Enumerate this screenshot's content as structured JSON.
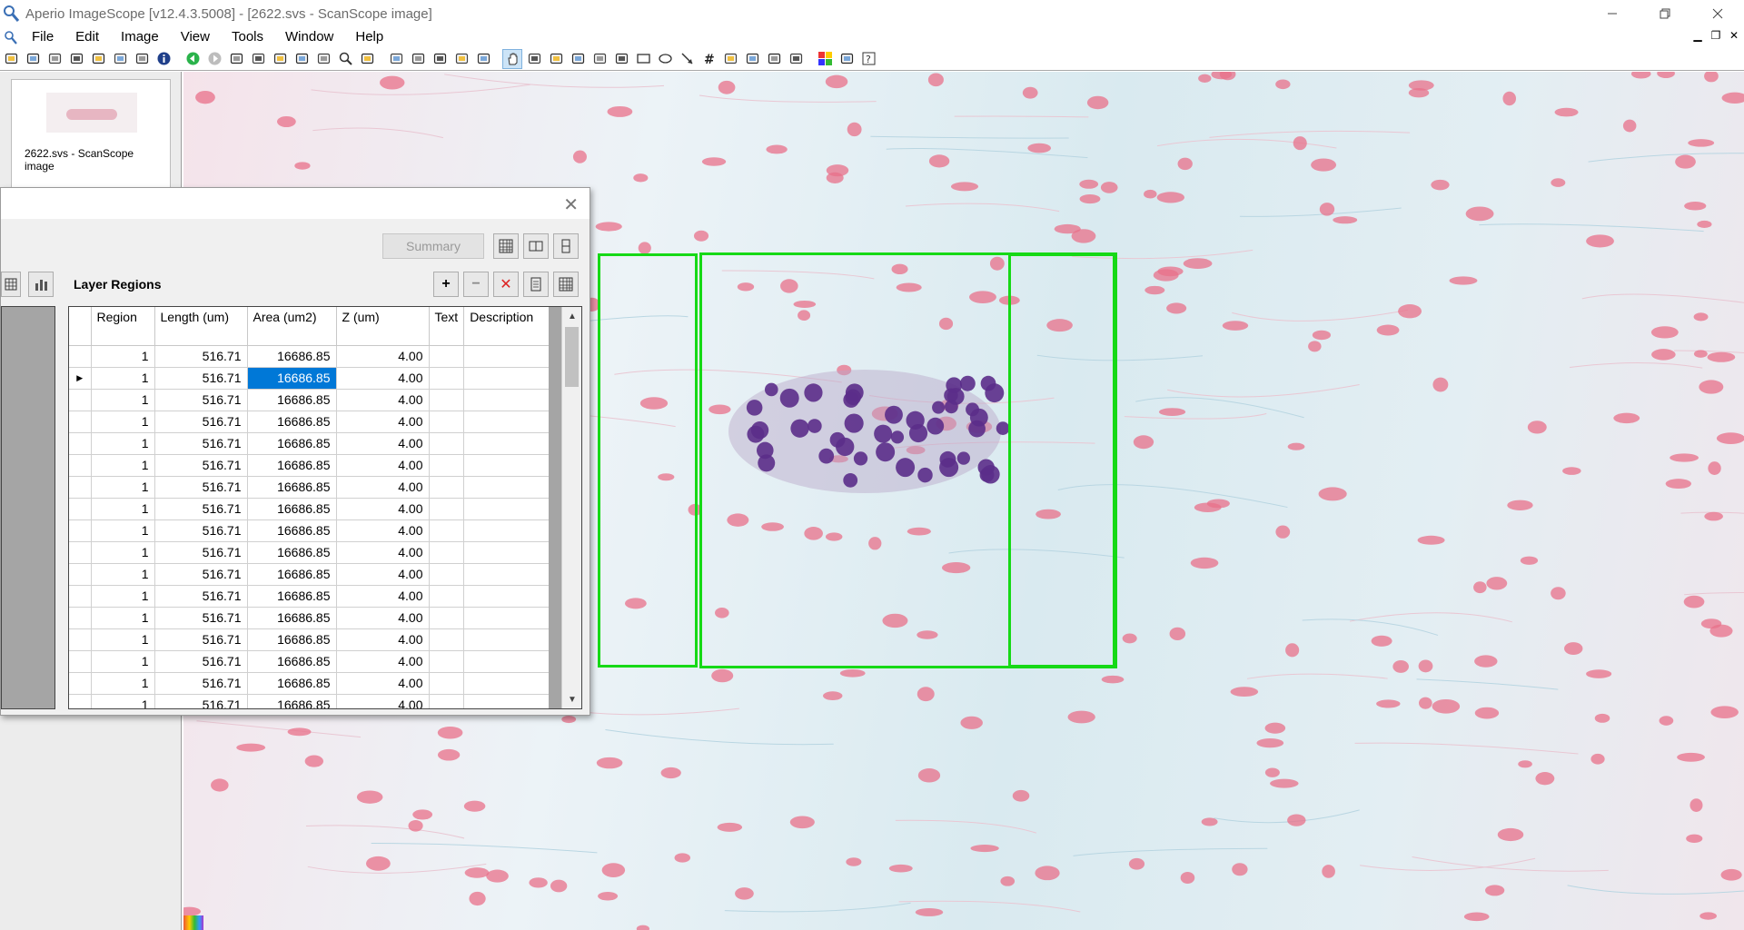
{
  "window": {
    "title": "Aperio ImageScope [v12.4.3.5008] - [2622.svs - ScanScope image]",
    "controls": [
      "minimize",
      "restore",
      "close"
    ]
  },
  "menu": [
    "File",
    "Edit",
    "Image",
    "View",
    "Tools",
    "Window",
    "Help"
  ],
  "toolbar_icons": [
    "open-icon",
    "folder-icon",
    "camera-icon",
    "snapshot-icon",
    "print-icon",
    "extract-icon",
    "link-icon",
    "info-icon",
    "back-icon",
    "forward-icon",
    "layout-icon",
    "layout2-icon",
    "window-icon",
    "page-icon",
    "compare-icon",
    "zoom-icon",
    "fit-icon",
    "annotate-icon",
    "highlight-icon",
    "transfer-icon",
    "undo-icon",
    "redo-icon",
    "pan-icon",
    "select-icon",
    "crop-icon",
    "pen-icon",
    "freehand-icon",
    "ruler-icon",
    "rectangle-icon",
    "ellipse-icon",
    "arrow-icon",
    "grid-icon",
    "counter-icon",
    "cut-icon",
    "copy-icon",
    "paste-icon",
    "color-icon",
    "levels-icon",
    "help-icon"
  ],
  "thumbnail": {
    "label": "2622.svs - ScanScope image"
  },
  "dialog": {
    "summary_label": "Summary",
    "layer_title": "Layer Regions",
    "columns": [
      "Region",
      "Length (um)",
      "Area (um2)",
      "Z (um)",
      "Text",
      "Description"
    ],
    "rows": [
      {
        "region": "1",
        "length": "516.71",
        "area": "16686.85",
        "z": "4.00",
        "text": "",
        "description": ""
      },
      {
        "region": "1",
        "length": "516.71",
        "area": "16686.85",
        "z": "4.00",
        "text": "",
        "description": ""
      },
      {
        "region": "1",
        "length": "516.71",
        "area": "16686.85",
        "z": "4.00",
        "text": "",
        "description": ""
      },
      {
        "region": "1",
        "length": "516.71",
        "area": "16686.85",
        "z": "4.00",
        "text": "",
        "description": ""
      },
      {
        "region": "1",
        "length": "516.71",
        "area": "16686.85",
        "z": "4.00",
        "text": "",
        "description": ""
      },
      {
        "region": "1",
        "length": "516.71",
        "area": "16686.85",
        "z": "4.00",
        "text": "",
        "description": ""
      },
      {
        "region": "1",
        "length": "516.71",
        "area": "16686.85",
        "z": "4.00",
        "text": "",
        "description": ""
      },
      {
        "region": "1",
        "length": "516.71",
        "area": "16686.85",
        "z": "4.00",
        "text": "",
        "description": ""
      },
      {
        "region": "1",
        "length": "516.71",
        "area": "16686.85",
        "z": "4.00",
        "text": "",
        "description": ""
      },
      {
        "region": "1",
        "length": "516.71",
        "area": "16686.85",
        "z": "4.00",
        "text": "",
        "description": ""
      },
      {
        "region": "1",
        "length": "516.71",
        "area": "16686.85",
        "z": "4.00",
        "text": "",
        "description": ""
      },
      {
        "region": "1",
        "length": "516.71",
        "area": "16686.85",
        "z": "4.00",
        "text": "",
        "description": ""
      },
      {
        "region": "1",
        "length": "516.71",
        "area": "16686.85",
        "z": "4.00",
        "text": "",
        "description": ""
      },
      {
        "region": "1",
        "length": "516.71",
        "area": "16686.85",
        "z": "4.00",
        "text": "",
        "description": ""
      },
      {
        "region": "1",
        "length": "516.71",
        "area": "16686.85",
        "z": "4.00",
        "text": "",
        "description": ""
      },
      {
        "region": "1",
        "length": "516.71",
        "area": "16686.85",
        "z": "4.00",
        "text": "",
        "description": ""
      },
      {
        "region": "1",
        "length": "516.71",
        "area": "16686.85",
        "z": "4.00",
        "text": "",
        "description": ""
      }
    ],
    "selected_row": 1,
    "selected_column": "area"
  },
  "colors": {
    "region_outline": "#16d916",
    "selection": "#0078d7",
    "rbc": "#e8708a",
    "nucleus": "#5b2e8a"
  }
}
